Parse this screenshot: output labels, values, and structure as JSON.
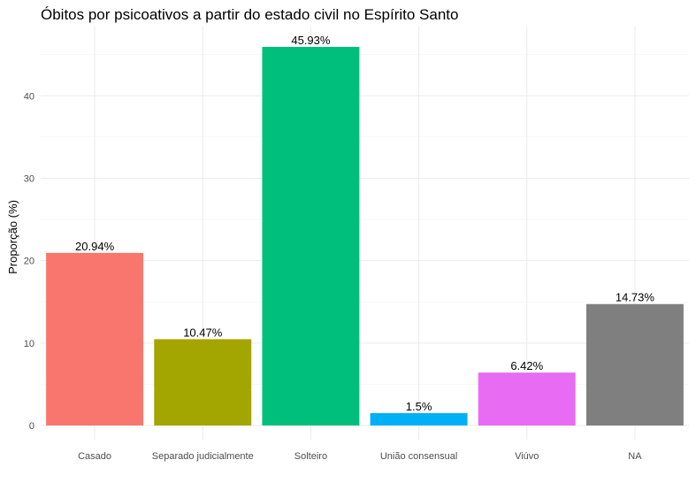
{
  "chart_data": {
    "type": "bar",
    "title": "Óbitos por psicoativos a partir do estado civil no Espírito Santo",
    "xlabel": "",
    "ylabel": "Proporção (%)",
    "categories": [
      "Casado",
      "Separado judicialmente",
      "Solteiro",
      "União consensual",
      "Viúvo",
      "NA"
    ],
    "values": [
      20.94,
      10.47,
      45.93,
      1.5,
      6.42,
      14.73
    ],
    "data_labels": [
      "20.94%",
      "10.47%",
      "45.93%",
      "1.5%",
      "6.42%",
      "14.73%"
    ],
    "colors": [
      "#F8766D",
      "#A3A500",
      "#00BF7D",
      "#00B0F6",
      "#E76BF3",
      "#7F7F7F"
    ],
    "yticks": [
      0,
      10,
      20,
      30,
      40
    ],
    "ylim": [
      0,
      48.2
    ],
    "grid": true,
    "legend": "none"
  }
}
